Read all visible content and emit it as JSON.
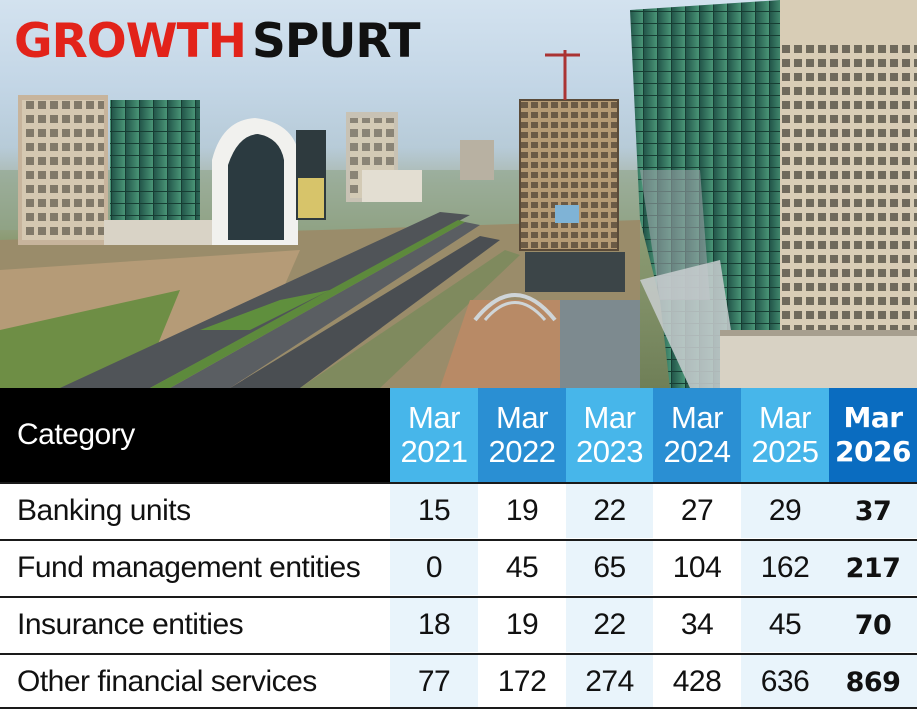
{
  "headline": {
    "word1": "GROWTH",
    "word2": "SPURT"
  },
  "table": {
    "category_header": "Category",
    "years": [
      {
        "month": "Mar",
        "year": "2021"
      },
      {
        "month": "Mar",
        "year": "2022"
      },
      {
        "month": "Mar",
        "year": "2023"
      },
      {
        "month": "Mar",
        "year": "2024"
      },
      {
        "month": "Mar",
        "year": "2025"
      },
      {
        "month": "Mar",
        "year": "2026"
      }
    ],
    "rows": [
      {
        "category": "Banking units",
        "values": [
          "15",
          "19",
          "22",
          "27",
          "29",
          "37"
        ]
      },
      {
        "category": "Fund management entities",
        "values": [
          "0",
          "45",
          "65",
          "104",
          "162",
          "217"
        ]
      },
      {
        "category": "Insurance entities",
        "values": [
          "18",
          "19",
          "22",
          "34",
          "45",
          "70"
        ]
      },
      {
        "category": "Other financial services",
        "values": [
          "77",
          "172",
          "274",
          "428",
          "636",
          "869"
        ]
      }
    ]
  },
  "colors": {
    "headline_red": "#e2231a",
    "header_light_blue": "#47b6ea",
    "header_mid_blue": "#2a8fd3",
    "header_dark_blue": "#0a6cc0",
    "cell_tint": "#e9f4fb"
  }
}
